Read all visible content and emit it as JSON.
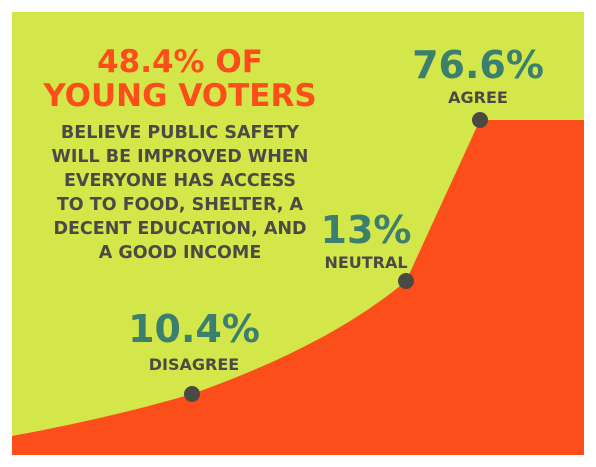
{
  "headline": {
    "line1": "48.4% OF",
    "line2": "YOUNG VOTERS",
    "body": [
      "BELIEVE PUBLIC SAFETY",
      "WILL BE IMPROVED WHEN",
      "EVERYONE HAS ACCESS",
      "TO TO FOOD, SHELTER, A",
      "DECENT EDUCATION, AND",
      "A GOOD INCOME"
    ]
  },
  "colors": {
    "background": "#d4e74a",
    "area": "#fc4e1b",
    "accent_text": "#fc4e1b",
    "value_text": "#3b7f6e",
    "dark_text": "#4b4a45",
    "point": "#4a4a42"
  },
  "chart_data": {
    "type": "area",
    "categories": [
      "DISAGREE",
      "NEUTRAL",
      "AGREE"
    ],
    "values": [
      10.4,
      13,
      76.6
    ],
    "value_labels": [
      "10.4%",
      "13%",
      "76.6%"
    ],
    "ylim": [
      0,
      90
    ],
    "grid": false,
    "legend": "none"
  }
}
